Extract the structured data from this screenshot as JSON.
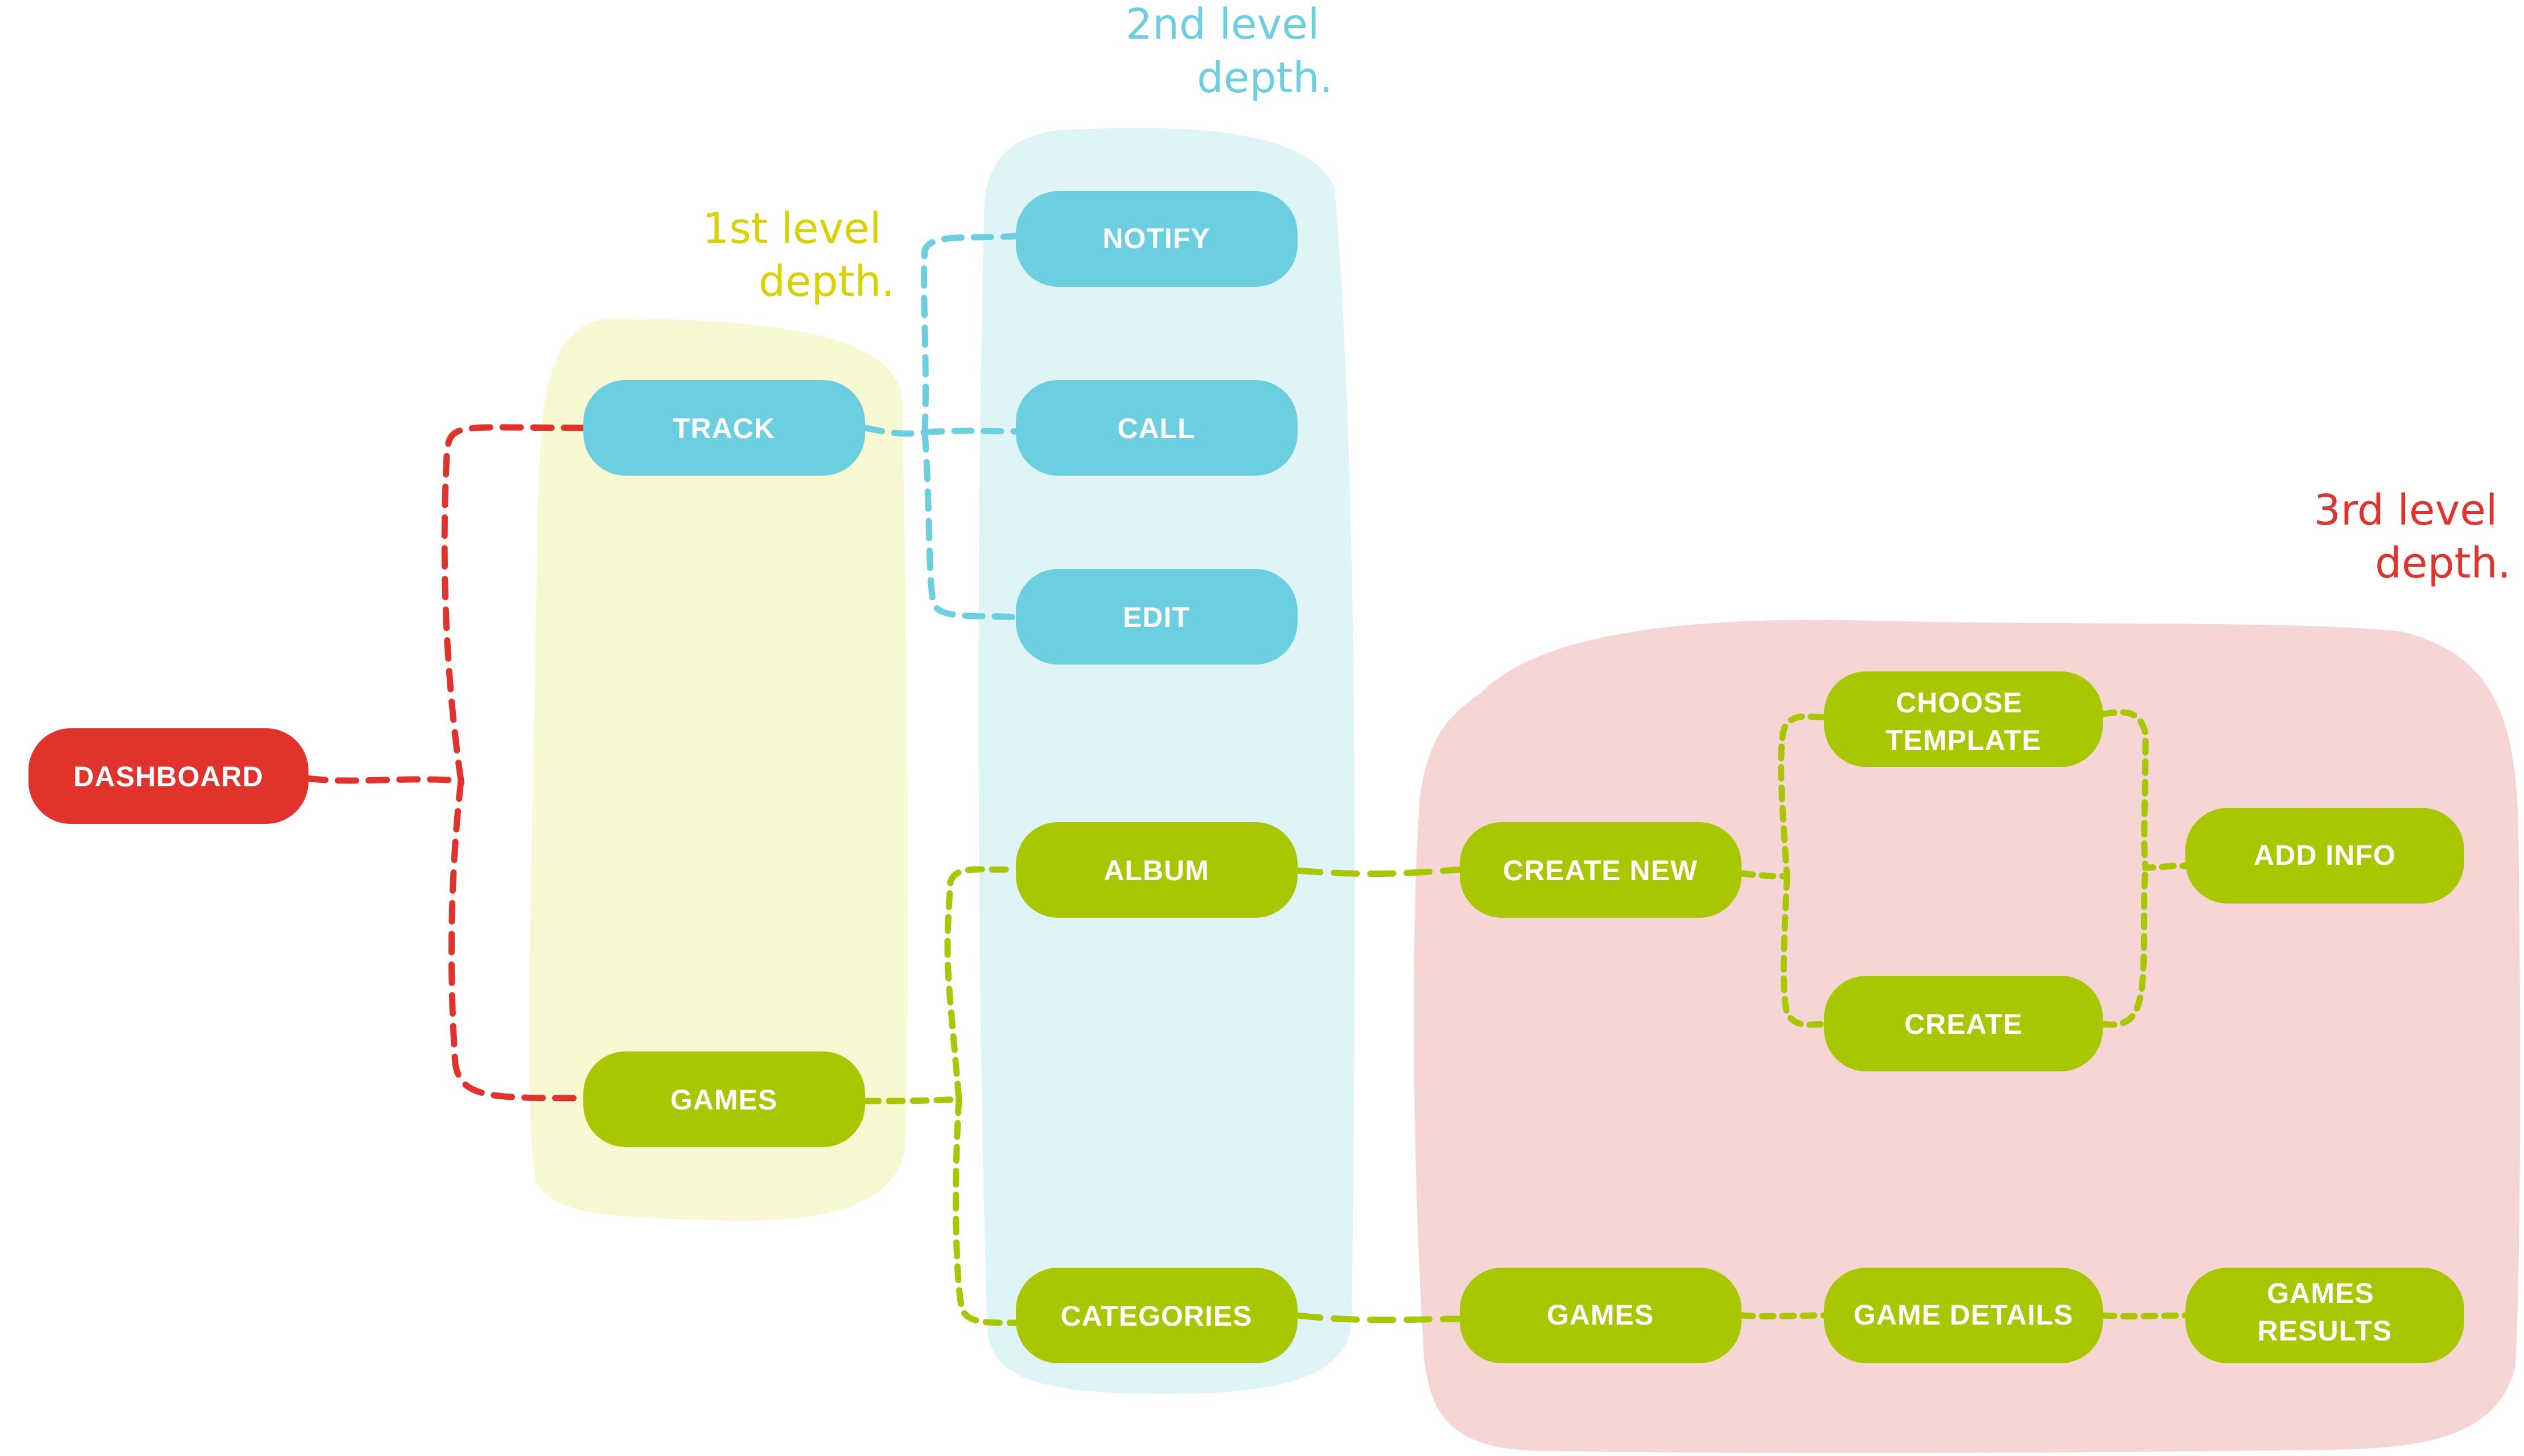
{
  "colors": {
    "red": "#e2322c",
    "blue": "#6ccfe0",
    "green": "#a9c700",
    "yellow_zone": "#f8f8d3",
    "blue_zone": "#dff4f6",
    "red_zone": "#f6d6d4",
    "yellow_text": "#d9d100",
    "blue_text": "#6ccfe0",
    "red_text": "#e2322c"
  },
  "depth_labels": {
    "first": [
      "1st level",
      "depth."
    ],
    "second": [
      "2nd level",
      "depth."
    ],
    "third": [
      "3rd level",
      "depth."
    ]
  },
  "nodes": {
    "dashboard": [
      "DASHBOARD"
    ],
    "track": [
      "TRACK"
    ],
    "games_l1": [
      "GAMES"
    ],
    "notify": [
      "NOTIFY"
    ],
    "call": [
      "CALL"
    ],
    "edit": [
      "EDIT"
    ],
    "album": [
      "ALBUM"
    ],
    "categories": [
      "CATEGORIES"
    ],
    "create_new": [
      "CREATE NEW"
    ],
    "choose_template": [
      "CHOOSE",
      "TEMPLATE"
    ],
    "create": [
      "CREATE"
    ],
    "add_info": [
      "ADD INFO"
    ],
    "games_l3": [
      "GAMES"
    ],
    "game_details": [
      "GAME DETAILS"
    ],
    "games_results": [
      "GAMES",
      "RESULTS"
    ]
  }
}
